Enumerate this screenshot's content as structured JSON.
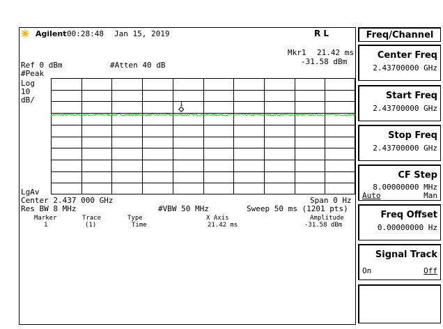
{
  "header": {
    "brand": "Agilent",
    "time": "00:28:48",
    "date": "Jan 15, 2019",
    "mode": "R L"
  },
  "display": {
    "ref": "Ref 0 dBm",
    "atten": "#Atten 40 dB",
    "detector": "#Peak",
    "scale_type": "Log",
    "scale_value": "10",
    "scale_unit": "dB/",
    "avg_type": "LgAv",
    "marker_readout_label": "Mkr1",
    "marker_readout_x": "21.42 ms",
    "marker_readout_y": "-31.58 dBm",
    "marker_number": "1"
  },
  "footer": {
    "center": "Center 2.437 000 GHz",
    "span": "Span 0 Hz",
    "res_bw": "Res BW 8 MHz",
    "vbw": "#VBW 50 MHz",
    "sweep": "Sweep 50 ms (1201 pts)"
  },
  "marker_table": {
    "headers": [
      "Marker",
      "Trace",
      "Type",
      "X Axis",
      "Amplitude"
    ],
    "rows": [
      [
        "1",
        "(1)",
        "Time",
        "21.42 ms",
        "-31.58 dBm"
      ]
    ]
  },
  "softkeys": {
    "title": "Freq/Channel",
    "center_freq": {
      "label": "Center Freq",
      "value": "2.43700000 GHz"
    },
    "start_freq": {
      "label": "Start Freq",
      "value": "2.43700000 GHz"
    },
    "stop_freq": {
      "label": "Stop Freq",
      "value": "2.43700000 GHz"
    },
    "cf_step": {
      "label": "CF Step",
      "value": "8.00000000 MHz",
      "opt_left": "Auto",
      "opt_right": "Man"
    },
    "freq_offset": {
      "label": "Freq Offset",
      "value": "0.00000000 Hz"
    },
    "signal_track": {
      "label": "Signal Track",
      "opt_left": "On",
      "opt_right": "Off"
    }
  },
  "colors": {
    "trace": "#00dd00",
    "logo": "#ffb000"
  },
  "trace_data": {
    "ref_level_dbm": 0,
    "db_per_div": 10,
    "divisions": 10,
    "mean_level_dbm": -31.6,
    "marker_x_ms": 21.42,
    "marker_y_dbm": -31.58,
    "sweep_ms": 50
  }
}
